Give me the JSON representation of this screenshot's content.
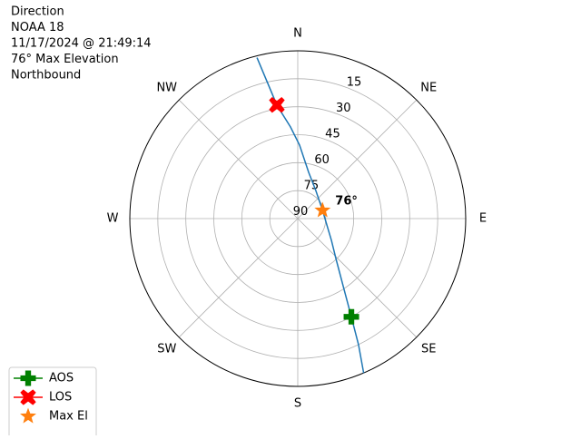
{
  "chart_data": {
    "type": "polar",
    "info": [
      "Direction",
      "NOAA 18",
      "11/17/2024 @ 21:49:14",
      "76° Max Elevation",
      "Northbound"
    ],
    "theta_zero": "N",
    "theta_direction": "clockwise",
    "thetaticks": [
      {
        "value": 0,
        "label": "N"
      },
      {
        "value": 45,
        "label": "NE"
      },
      {
        "value": 90,
        "label": "E"
      },
      {
        "value": 135,
        "label": "SE"
      },
      {
        "value": 180,
        "label": "S"
      },
      {
        "value": 225,
        "label": "SW"
      },
      {
        "value": 270,
        "label": "W"
      },
      {
        "value": 315,
        "label": "NW"
      }
    ],
    "rlim": [
      90,
      0
    ],
    "rticks": [
      15,
      30,
      45,
      60,
      75,
      90
    ],
    "grid": true,
    "series": [
      {
        "color": "#1f77b4",
        "marker": "line",
        "theta": [
          156.9,
          154.3,
          151.4,
          136.3,
          123.0,
          71.6,
          32.8,
          13.2,
          1.4,
          355.5,
          349.6,
          345.8
        ],
        "r": [
          0,
          15,
          30,
          60.4,
          68.5,
          76,
          72.1,
          64.5,
          50.6,
          40.7,
          28.2,
          1
        ]
      },
      {
        "name": "AOS",
        "color": "#008000",
        "marker": "plus",
        "theta": [
          151.4
        ],
        "r": [
          30
        ]
      },
      {
        "name": "LOS",
        "color": "#ff0000",
        "marker": "x",
        "theta": [
          349.6
        ],
        "r": [
          28
        ]
      },
      {
        "name": "Max El",
        "color": "#ff7f0e",
        "marker": "star",
        "theta": [
          71.6
        ],
        "r": [
          76
        ]
      }
    ],
    "annotation": "76°",
    "legend": "lower left"
  }
}
